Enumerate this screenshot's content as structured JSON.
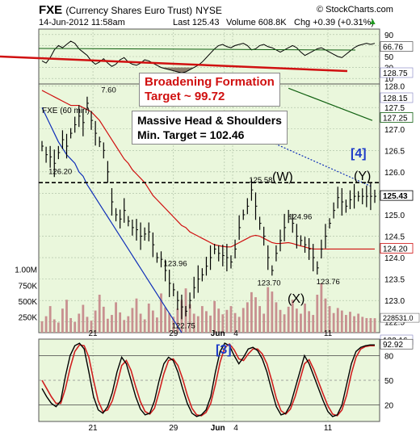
{
  "header": {
    "symbol": "FXE",
    "name": "(Currency Shares Euro Trust)",
    "exchange": "NYSE",
    "logo_text": "© StockCharts.com",
    "timestamp": "14-Jun-2012 11:58am",
    "last": "Last 125.43",
    "volume": "Volume 608.8K",
    "chg": "Chg +0.39 (+0.31%)",
    "chg_arrow": "▲"
  },
  "annotations": {
    "broadening_line1": "Broadening Formation",
    "broadening_line2": "Target ~ 99.72",
    "hs_line1": "Massive Head & Shoulders",
    "hs_line2": "Min. Target = 102.46",
    "wave4": "[4]",
    "wave3": "[3]",
    "waveW": "(W)",
    "waveX": "(X)",
    "waveY": "(Y)",
    "price_label": "FXE (60 min)"
  },
  "colors": {
    "panel_bg": "#eaf7dc",
    "grid": "#a8bba0",
    "price": "#000000",
    "ma_red": "#d01010",
    "ma_blue": "#1030b8",
    "ma_green": "#106010",
    "trend_red": "#d01010",
    "wave_blue": "#1e3cc8",
    "volume_bar": "#c89090",
    "stoch_fast": "#000000",
    "stoch_slow": "#d02020",
    "rsi_fill": "#7a6a58"
  },
  "chart_data": [
    {
      "type": "line",
      "panel": "rsi",
      "yticks": [
        90,
        70,
        50,
        30,
        10
      ],
      "ylim": [
        0,
        100
      ],
      "x": [
        0,
        5,
        10,
        15,
        20,
        25,
        30,
        35,
        40,
        45,
        50,
        55,
        60,
        65,
        70,
        75,
        80,
        85,
        90,
        95,
        100,
        105,
        110,
        115,
        120,
        125,
        130,
        135,
        140,
        145,
        150,
        155,
        160,
        165,
        170,
        175,
        180,
        185,
        190,
        195,
        200,
        205,
        210,
        215,
        220,
        225,
        230,
        235,
        240,
        245,
        250,
        255,
        260,
        265,
        270,
        275,
        280,
        285,
        290,
        295,
        300,
        305,
        310,
        315,
        320,
        325,
        330,
        335,
        340,
        345,
        350,
        355,
        360,
        365,
        370,
        375,
        380,
        385,
        390,
        395,
        400,
        405
      ],
      "values": [
        42,
        38,
        48,
        62,
        70,
        66,
        72,
        78,
        74,
        64,
        58,
        52,
        42,
        36,
        40,
        46,
        38,
        32,
        36,
        44,
        48,
        40,
        36,
        34,
        38,
        44,
        42,
        38,
        34,
        30,
        28,
        26,
        24,
        22,
        20,
        22,
        26,
        30,
        34,
        40,
        48,
        56,
        64,
        70,
        72,
        68,
        66,
        70,
        72,
        74,
        70,
        62,
        64,
        70,
        72,
        68,
        66,
        62,
        58,
        62,
        66,
        70,
        66,
        58,
        52,
        56,
        60,
        64,
        66,
        62,
        58,
        54,
        50,
        48,
        54,
        60,
        66,
        70,
        72,
        74,
        72,
        74
      ],
      "current_value_labels": [
        "66.76",
        "128.75",
        "128.15"
      ]
    },
    {
      "type": "line",
      "panel": "price",
      "title": "FXE (60 min)",
      "ylim": [
        122.25,
        128.05
      ],
      "yticks": [
        128.0,
        127.5,
        127.0,
        126.5,
        126.0,
        125.5,
        125.0,
        124.5,
        124.0,
        123.5,
        123.0,
        122.5
      ],
      "xticks": [
        "21",
        "29",
        "Jun",
        "4",
        "11"
      ],
      "x": [
        0,
        5,
        10,
        15,
        20,
        25,
        30,
        35,
        40,
        45,
        50,
        55,
        60,
        65,
        70,
        75,
        80,
        85,
        90,
        95,
        100,
        105,
        110,
        115,
        120,
        125,
        130,
        135,
        140,
        145,
        150,
        155,
        160,
        165,
        170,
        175,
        180,
        185,
        190,
        195,
        200,
        205,
        210,
        215,
        220,
        225,
        230,
        235,
        240,
        245,
        250,
        255,
        260,
        265,
        270,
        275,
        280,
        285,
        290,
        295,
        300,
        305,
        310,
        315,
        320,
        325,
        330,
        335,
        340,
        345,
        350,
        355,
        360,
        365,
        370,
        375,
        380,
        385,
        390,
        395,
        400,
        405
      ],
      "price": [
        126.6,
        126.4,
        126.35,
        126.2,
        126.45,
        126.75,
        126.6,
        126.9,
        127.1,
        127.3,
        127.15,
        127.6,
        127.2,
        126.9,
        126.7,
        126.5,
        126.0,
        125.3,
        125.0,
        124.9,
        125.1,
        124.85,
        124.7,
        124.65,
        124.5,
        124.55,
        124.6,
        124.3,
        124.0,
        123.96,
        123.7,
        123.4,
        123.25,
        123.0,
        122.85,
        122.75,
        123.0,
        123.3,
        123.5,
        123.6,
        123.8,
        124.0,
        124.2,
        124.1,
        124.05,
        124.0,
        123.9,
        124.2,
        124.7,
        125.0,
        125.2,
        125.58,
        125.2,
        124.8,
        124.5,
        124.0,
        123.7,
        124.1,
        124.4,
        124.7,
        124.96,
        124.8,
        124.5,
        124.4,
        124.3,
        124.2,
        124.0,
        123.76,
        124.2,
        124.5,
        124.8,
        125.1,
        125.4,
        125.3,
        125.2,
        125.35,
        125.43,
        125.43,
        125.43,
        125.43,
        125.43,
        125.43
      ],
      "ma_red": [
        127.9,
        127.85,
        127.8,
        127.75,
        127.7,
        127.65,
        127.6,
        127.55,
        127.55,
        127.55,
        127.5,
        127.45,
        127.4,
        127.3,
        127.2,
        127.05,
        126.9,
        126.75,
        126.6,
        126.45,
        126.3,
        126.2,
        126.05,
        125.95,
        125.85,
        125.75,
        125.6,
        125.45,
        125.35,
        125.25,
        125.15,
        125.05,
        124.95,
        124.85,
        124.75,
        124.7,
        124.6,
        124.55,
        124.5,
        124.45,
        124.4,
        124.35,
        124.3,
        124.28,
        124.26,
        124.25,
        124.25,
        124.3,
        124.35,
        124.4,
        124.45,
        124.5,
        124.52,
        124.5,
        124.45,
        124.4,
        124.35,
        124.33,
        124.33,
        124.34,
        124.35,
        124.33,
        124.3,
        124.27,
        124.25,
        124.22,
        124.2,
        124.2,
        124.2,
        124.2,
        124.2,
        124.2,
        124.2,
        124.2,
        124.2,
        124.2,
        124.2,
        124.2,
        124.2,
        124.2,
        124.2,
        124.2
      ],
      "ma_blue": [
        127.5,
        127.3,
        127.1,
        126.9,
        126.7,
        126.55,
        126.4,
        126.3,
        126.2,
        126.0,
        125.9,
        125.7,
        125.55,
        125.4,
        125.25,
        125.1,
        124.95,
        124.8,
        124.65,
        124.5,
        124.35,
        124.2,
        124.05,
        123.9,
        123.75,
        123.6,
        123.45,
        123.3,
        123.15,
        123.0,
        122.85,
        122.7,
        122.55,
        122.4,
        122.25
      ],
      "current_value_labels": [
        "127.25",
        "125.43",
        "124.20"
      ],
      "labels": {
        "high_127_60": "7.60",
        "low_126_20": "126.20",
        "w_high": "125.58",
        "low_123_96": "123.96",
        "low_122_75": "122.75",
        "mid_124_96": "124.96",
        "low_123_70": "123.70",
        "low_123_76": "123.76"
      }
    },
    {
      "type": "bar",
      "panel": "volume",
      "yticks": [
        "1.00M",
        "750K",
        "500K",
        "250K"
      ],
      "ylim": [
        0,
        1200000
      ],
      "current_value_label": "228531.0",
      "values": [
        180000,
        260000,
        420000,
        210000,
        160000,
        380000,
        520000,
        230000,
        170000,
        300000,
        440000,
        250000,
        190000,
        350000,
        600000,
        410000,
        220000,
        280000,
        480000,
        320000,
        200000,
        260000,
        390000,
        540000,
        300000,
        210000,
        460000,
        350000,
        240000,
        620000,
        400000,
        310000,
        250000,
        380000,
        520000,
        700000,
        450000,
        300000,
        260000,
        420000,
        340000,
        270000,
        500000,
        380000,
        290000,
        360000,
        420000,
        310000,
        250000,
        390000,
        480000,
        640000,
        560000,
        420000,
        300000,
        720000,
        650000,
        480000,
        360000,
        290000,
        410000,
        520000,
        380000,
        300000,
        460000,
        340000,
        280000,
        600000,
        780000,
        540000,
        420000,
        310000,
        390000,
        350000,
        280000,
        330000,
        260000,
        300000,
        250000,
        230000,
        230000,
        228531
      ]
    },
    {
      "type": "line",
      "panel": "stochastic",
      "title": "[3]",
      "yticks": [
        80,
        50,
        20
      ],
      "ylim": [
        0,
        100
      ],
      "xticks": [
        "21",
        "29",
        "Jun",
        "4",
        "11"
      ],
      "current_value_labels": [
        "122.16",
        "92.92"
      ],
      "fast": [
        40,
        30,
        22,
        18,
        25,
        55,
        80,
        92,
        95,
        88,
        60,
        30,
        14,
        10,
        18,
        35,
        60,
        78,
        70,
        50,
        30,
        15,
        8,
        10,
        25,
        50,
        70,
        78,
        74,
        60,
        40,
        22,
        10,
        6,
        8,
        14,
        30,
        60,
        85,
        95,
        92,
        80,
        70,
        78,
        88,
        90,
        86,
        76,
        60,
        38,
        18,
        8,
        10,
        20,
        40,
        60,
        80,
        70,
        55,
        40,
        25,
        12,
        6,
        8,
        20,
        45,
        70,
        85,
        90,
        92,
        93,
        93
      ],
      "slow": [
        50,
        40,
        30,
        22,
        22,
        40,
        65,
        85,
        93,
        92,
        78,
        50,
        25,
        12,
        14,
        25,
        45,
        68,
        74,
        62,
        42,
        24,
        12,
        9,
        16,
        36,
        58,
        74,
        76,
        68,
        52,
        32,
        16,
        8,
        7,
        11,
        22,
        45,
        72,
        90,
        94,
        87,
        76,
        74,
        82,
        88,
        88,
        82,
        70,
        50,
        28,
        13,
        9,
        15,
        30,
        50,
        70,
        75,
        63,
        48,
        33,
        19,
        9,
        7,
        14,
        32,
        58,
        78,
        88,
        91,
        92,
        92
      ]
    }
  ]
}
